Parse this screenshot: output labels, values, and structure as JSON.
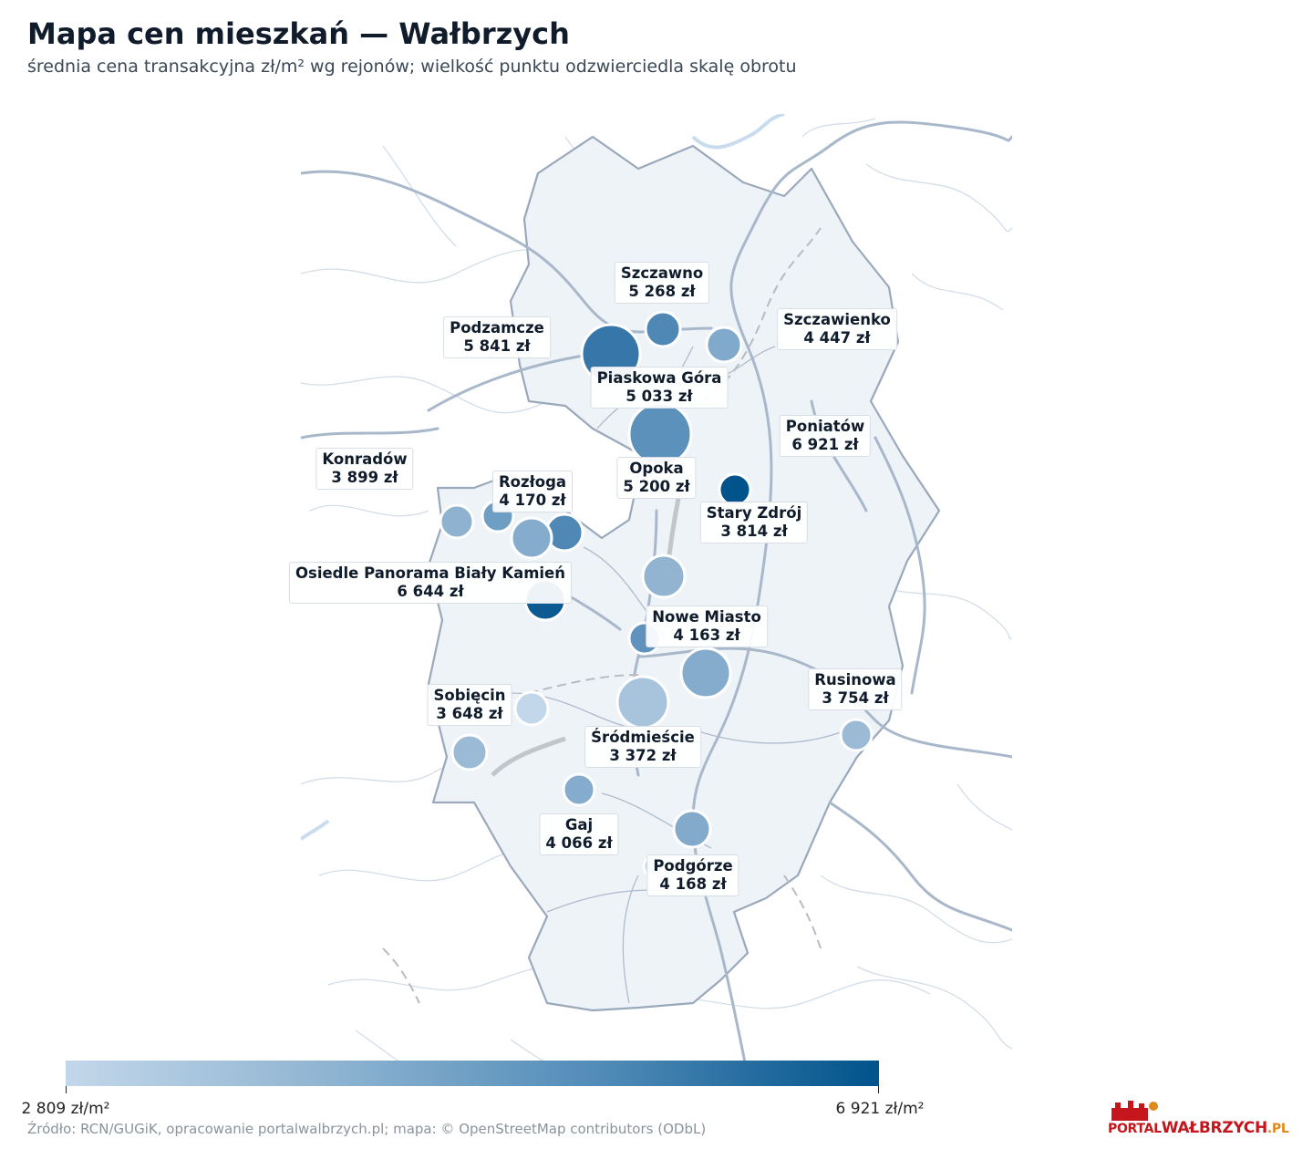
{
  "header": {
    "title": "Mapa cen mieszkań — Wałbrzych",
    "subtitle": "średnia cena transakcyjna zł/m² wg rejonów; wielkość punktu odzwierciedla skalę obrotu"
  },
  "colors": {
    "low": "#c3d7ea",
    "high": "#00538b",
    "boundary_fill": "#eef3f8",
    "boundary_stroke": "#9aa8bb"
  },
  "districts": [
    {
      "name": "Szczawno",
      "price": "5 268 zł"
    },
    {
      "name": "Podzamcze",
      "price": "5 841 zł"
    },
    {
      "name": "Szczawienko",
      "price": "4 447 zł"
    },
    {
      "name": "Piaskowa Góra",
      "price": "5 033 zł"
    },
    {
      "name": "Poniatów",
      "price": "6 921 zł"
    },
    {
      "name": "Konradów",
      "price": "3 899 zł"
    },
    {
      "name": "Rozłoga",
      "price": "4 170 zł"
    },
    {
      "name": "Opoka",
      "price": "5 200 zł"
    },
    {
      "name": "Stary Zdrój",
      "price": "3 814 zł"
    },
    {
      "name": "Osiedle Panorama Biały Kamień",
      "price": "6 644 zł"
    },
    {
      "name": "Nowe Miasto",
      "price": "4 163 zł"
    },
    {
      "name": "Rusinowa",
      "price": "3 754 zł"
    },
    {
      "name": "Sobięcin",
      "price": "3 648 zł"
    },
    {
      "name": "Śródmieście",
      "price": "3 372 zł"
    },
    {
      "name": "Gaj",
      "price": "4 066 zł"
    },
    {
      "name": "Podgórze",
      "price": "4 168 zł"
    }
  ],
  "legend": {
    "min_label": "2 809 zł/m²",
    "max_label": "6 921 zł/m²"
  },
  "footer": {
    "source": "Źródło: RCN/GUGiK, opracowanie portalwalbrzych.pl; mapa: © OpenStreetMap contributors (ODbL)"
  },
  "logo": {
    "part1": "PORTAL",
    "part2": "WAŁBRZYCH",
    "part3": ".PL"
  }
}
